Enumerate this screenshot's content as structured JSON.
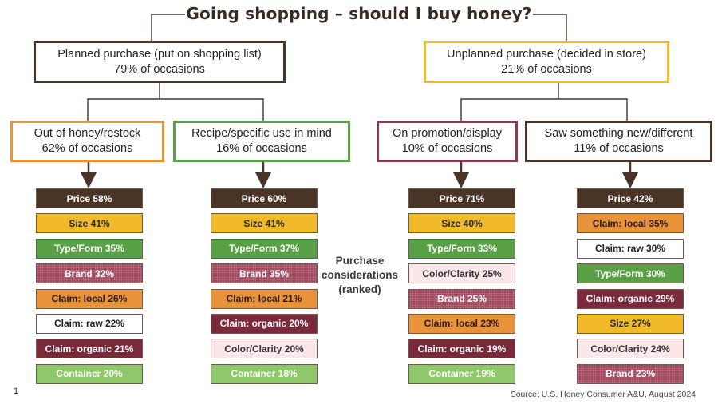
{
  "title": "Going shopping – should I buy honey?",
  "planned": {
    "line1": "Planned purchase (put on shopping list)",
    "line2": "79% of occasions"
  },
  "unplanned": {
    "line1": "Unplanned purchase (decided in store)",
    "line2": "21% of occasions"
  },
  "branches": [
    {
      "line1": "Out of honey/restock",
      "line2": "62% of occasions",
      "color": "#e8923a",
      "items": [
        {
          "label": "Price 58%",
          "kind": "price"
        },
        {
          "label": "Size 41%",
          "kind": "size"
        },
        {
          "label": "Type/Form 35%",
          "kind": "type"
        },
        {
          "label": "Brand 32%",
          "kind": "brand"
        },
        {
          "label": "Claim: local 26%",
          "kind": "local"
        },
        {
          "label": "Claim: raw 22%",
          "kind": "raw"
        },
        {
          "label": "Claim: organic 21%",
          "kind": "organic"
        },
        {
          "label": "Container 20%",
          "kind": "container"
        }
      ]
    },
    {
      "line1": "Recipe/specific use in mind",
      "line2": "16% of occasions",
      "color": "#5aa046",
      "items": [
        {
          "label": "Price 60%",
          "kind": "price"
        },
        {
          "label": "Size 41%",
          "kind": "size"
        },
        {
          "label": "Type/Form 37%",
          "kind": "type"
        },
        {
          "label": "Brand 35%",
          "kind": "brand"
        },
        {
          "label": "Claim: local 21%",
          "kind": "local"
        },
        {
          "label": "Claim: organic 20%",
          "kind": "organic"
        },
        {
          "label": "Color/Clarity 20%",
          "kind": "clarity"
        },
        {
          "label": "Container 18%",
          "kind": "container"
        }
      ]
    },
    {
      "line1": "On promotion/display",
      "line2": "10% of occasions",
      "color": "#8a3a52",
      "items": [
        {
          "label": "Price 71%",
          "kind": "price"
        },
        {
          "label": "Size 40%",
          "kind": "size"
        },
        {
          "label": "Type/Form 33%",
          "kind": "type"
        },
        {
          "label": "Color/Clarity 25%",
          "kind": "clarity"
        },
        {
          "label": "Brand 25%",
          "kind": "brand"
        },
        {
          "label": "Claim: local 23%",
          "kind": "local"
        },
        {
          "label": "Claim: organic 19%",
          "kind": "organic"
        },
        {
          "label": "Container 19%",
          "kind": "container"
        }
      ]
    },
    {
      "line1": "Saw something new/different",
      "line2": "11% of occasions",
      "color": "#4a3426",
      "items": [
        {
          "label": "Price 42%",
          "kind": "price"
        },
        {
          "label": "Claim: local 35%",
          "kind": "local"
        },
        {
          "label": "Claim: raw 30%",
          "kind": "raw"
        },
        {
          "label": "Type/Form 30%",
          "kind": "type"
        },
        {
          "label": "Claim: organic 29%",
          "kind": "organic"
        },
        {
          "label": "Size 27%",
          "kind": "size"
        },
        {
          "label": "Color/Clarity 24%",
          "kind": "clarity"
        },
        {
          "label": "Brand 23%",
          "kind": "brand"
        }
      ]
    }
  ],
  "purchase_label": {
    "line1": "Purchase",
    "line2": "considerations",
    "line3": "(ranked)"
  },
  "page_number": "1",
  "source": "Source:  U.S. Honey Consumer A&U, August 2024"
}
